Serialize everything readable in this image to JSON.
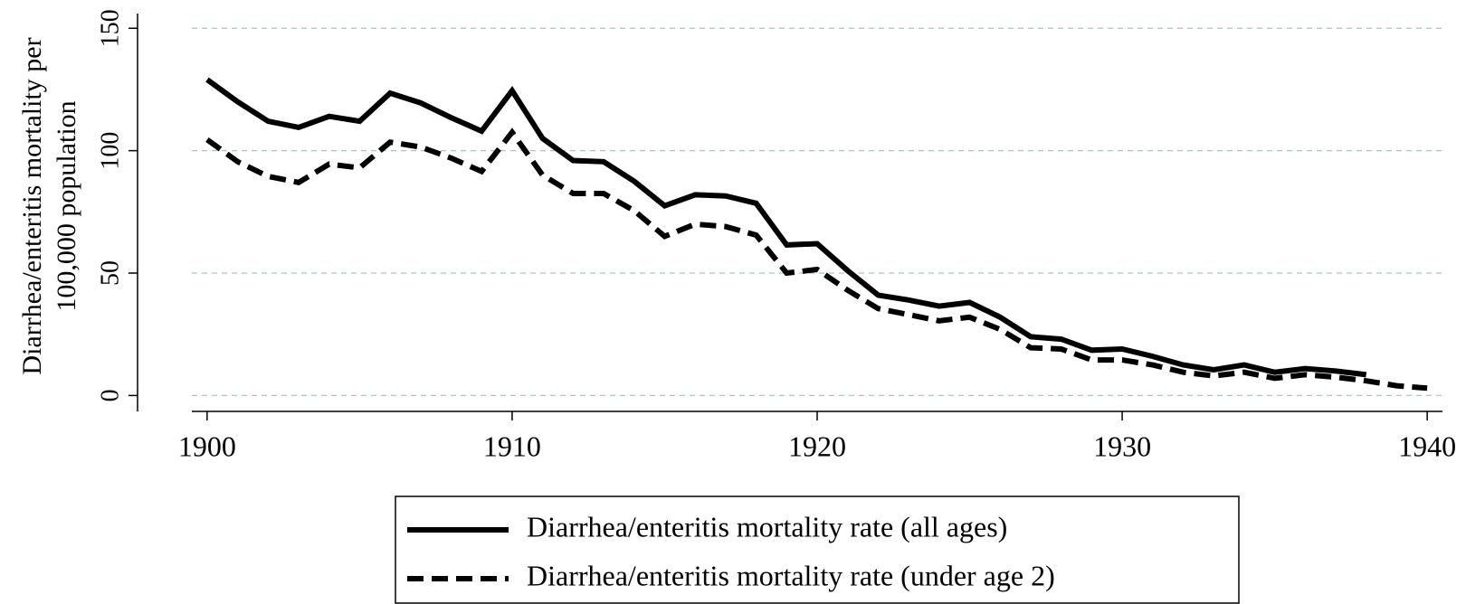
{
  "chart_data": {
    "type": "line",
    "ylabel": [
      "Diarrhea/enteritis mortality per",
      "100,000 population"
    ],
    "x": [
      1900,
      1901,
      1902,
      1903,
      1904,
      1905,
      1906,
      1907,
      1908,
      1909,
      1910,
      1911,
      1912,
      1913,
      1914,
      1915,
      1916,
      1917,
      1918,
      1919,
      1920,
      1921,
      1922,
      1923,
      1924,
      1925,
      1926,
      1927,
      1928,
      1929,
      1930,
      1931,
      1932,
      1933,
      1934,
      1935,
      1936,
      1937,
      1938,
      1939,
      1940
    ],
    "series": [
      {
        "name": "Diarrhea/enteritis mortality rate (all ages)",
        "color": "#000000",
        "linestyle": "solid",
        "values": [
          129,
          120,
          112,
          109.5,
          114,
          112,
          123.5,
          119.5,
          113.5,
          108,
          124.5,
          105,
          96,
          95.5,
          87.5,
          77.5,
          82,
          81.5,
          78.5,
          61.5,
          62,
          51,
          41,
          39,
          36.5,
          38,
          32,
          24,
          23,
          18.5,
          19,
          16,
          12.5,
          10.5,
          12.5,
          9.5,
          11,
          10,
          8.5,
          null,
          null
        ]
      },
      {
        "name": "Diarrhea/enteritis mortality rate (under age 2)",
        "color": "#000000",
        "linestyle": "dashed",
        "values": [
          104.5,
          95.5,
          89.5,
          87,
          94.5,
          93,
          103.5,
          101.5,
          97,
          91.5,
          107.5,
          90,
          82.5,
          82.5,
          75.5,
          65,
          70,
          69,
          65.5,
          50,
          51.5,
          43,
          35.5,
          33,
          30.5,
          32,
          27,
          19.5,
          19,
          14.5,
          14.5,
          12.5,
          9.5,
          8,
          9.5,
          7,
          8.5,
          7.5,
          6,
          4,
          3
        ]
      }
    ],
    "xlim": [
      1899.5,
      1940.5
    ],
    "xticks": [
      1900,
      1910,
      1920,
      1930,
      1940
    ],
    "ylim": [
      -6.5,
      156
    ],
    "yticks": [
      0,
      50,
      100,
      150
    ],
    "grid": true,
    "grid_color": "#a9c4c4",
    "legend": "bottom"
  }
}
